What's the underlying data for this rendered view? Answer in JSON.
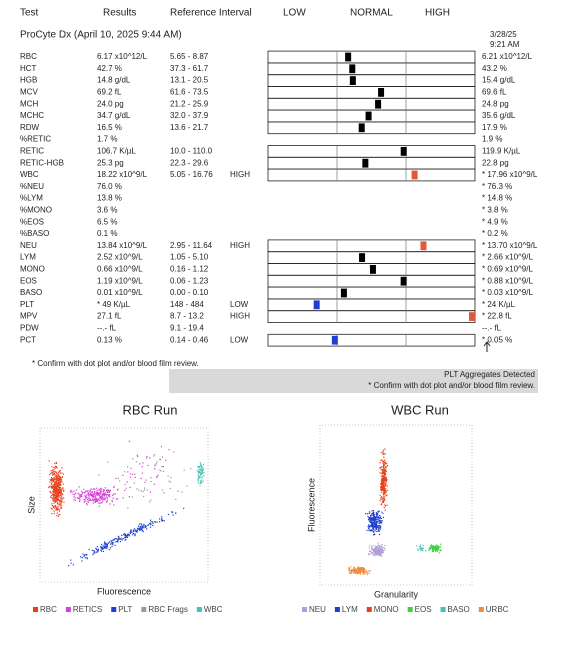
{
  "header": {
    "test": "Test",
    "results": "Results",
    "reference": "Reference Interval",
    "low": "LOW",
    "normal": "NORMAL",
    "high": "HIGH"
  },
  "run": {
    "title": "ProCyte Dx (April 10, 2025 9:44 AM)",
    "prior_date": "3/28/25",
    "prior_time": "9:21 AM"
  },
  "rows": [
    {
      "test": "RBC",
      "result": "6.17 x10^12/L",
      "reference": "5.65 - 8.87",
      "flag": "",
      "prior": "6.21 x10^12/L",
      "graph": true,
      "color": "#222",
      "prior_color": "#222"
    },
    {
      "test": "HCT",
      "result": "42.7 %",
      "reference": "37.3 - 61.7",
      "flag": "",
      "prior": "43.2 %",
      "graph": true,
      "color": "#222",
      "prior_color": "#222"
    },
    {
      "test": "HGB",
      "result": "14.8 g/dL",
      "reference": "13.1 - 20.5",
      "flag": "",
      "prior": "15.4 g/dL",
      "graph": true,
      "color": "#222",
      "prior_color": "#222"
    },
    {
      "test": "MCV",
      "result": "69.2 fL",
      "reference": "61.6 - 73.5",
      "flag": "",
      "prior": "69.6 fL",
      "graph": true,
      "color": "#222",
      "prior_color": "#222"
    },
    {
      "test": "MCH",
      "result": "24.0 pg",
      "reference": "21.2 - 25.9",
      "flag": "",
      "prior": "24.8 pg",
      "graph": true,
      "color": "#222",
      "prior_color": "#222"
    },
    {
      "test": "MCHC",
      "result": "34.7 g/dL",
      "reference": "32.0 - 37.9",
      "flag": "",
      "prior": "35.6 g/dL",
      "graph": true,
      "color": "#222",
      "prior_color": "#222"
    },
    {
      "test": "RDW",
      "result": "16.5 %",
      "reference": "13.6 - 21.7",
      "flag": "",
      "prior": "17.9 %",
      "graph": true,
      "color": "#222",
      "prior_color": "#222"
    },
    {
      "test": "%RETIC",
      "result": "1.7 %",
      "reference": "",
      "flag": "",
      "prior": "1.9 %",
      "graph": false,
      "color": "#222",
      "prior_color": "#222"
    },
    {
      "test": "RETIC",
      "result": "106.7 K/µL",
      "reference": "10.0 - 110.0",
      "flag": "",
      "prior": "119.9 K/µL",
      "graph": true,
      "color": "#222",
      "prior_color": "#c0392b"
    },
    {
      "test": "RETIC-HGB",
      "result": "25.3 pg",
      "reference": "22.3 - 29.6",
      "flag": "",
      "prior": "22.8 pg",
      "graph": true,
      "color": "#222",
      "prior_color": "#222"
    },
    {
      "test": "WBC",
      "result": "18.22 x10^9/L",
      "reference": "5.05 - 16.76",
      "flag": "HIGH",
      "prior": "* 17.96 x10^9/L",
      "graph": true,
      "color": "#c0392b",
      "prior_color": "#c0392b"
    },
    {
      "test": "%NEU",
      "result": "76.0 %",
      "reference": "",
      "flag": "",
      "prior": "* 76.3 %",
      "graph": false,
      "color": "#222",
      "prior_color": "#222"
    },
    {
      "test": "%LYM",
      "result": "13.8 %",
      "reference": "",
      "flag": "",
      "prior": "* 14.8 %",
      "graph": false,
      "color": "#222",
      "prior_color": "#222"
    },
    {
      "test": "%MONO",
      "result": "3.6 %",
      "reference": "",
      "flag": "",
      "prior": "* 3.8 %",
      "graph": false,
      "color": "#222",
      "prior_color": "#222"
    },
    {
      "test": "%EOS",
      "result": "6.5 %",
      "reference": "",
      "flag": "",
      "prior": "* 4.9 %",
      "graph": false,
      "color": "#222",
      "prior_color": "#222"
    },
    {
      "test": "%BASO",
      "result": "0.1 %",
      "reference": "",
      "flag": "",
      "prior": "* 0.2 %",
      "graph": false,
      "color": "#222",
      "prior_color": "#222"
    },
    {
      "test": "NEU",
      "result": "13.84 x10^9/L",
      "reference": "2.95 - 11.64",
      "flag": "HIGH",
      "prior": "* 13.70 x10^9/L",
      "graph": true,
      "color": "#c0392b",
      "prior_color": "#c0392b"
    },
    {
      "test": "LYM",
      "result": "2.52 x10^9/L",
      "reference": "1.05 - 5.10",
      "flag": "",
      "prior": "* 2.66 x10^9/L",
      "graph": true,
      "color": "#222",
      "prior_color": "#222"
    },
    {
      "test": "MONO",
      "result": "0.66 x10^9/L",
      "reference": "0.16 - 1.12",
      "flag": "",
      "prior": "* 0.69 x10^9/L",
      "graph": true,
      "color": "#222",
      "prior_color": "#222"
    },
    {
      "test": "EOS",
      "result": "1.19 x10^9/L",
      "reference": "0.06 - 1.23",
      "flag": "",
      "prior": "* 0.88 x10^9/L",
      "graph": true,
      "color": "#222",
      "prior_color": "#222"
    },
    {
      "test": "BASO",
      "result": "0.01 x10^9/L",
      "reference": "0.00 - 0.10",
      "flag": "",
      "prior": "* 0.03 x10^9/L",
      "graph": true,
      "color": "#222",
      "prior_color": "#222"
    },
    {
      "test": "PLT",
      "result": "* 49 K/µL",
      "reference": "148 - 484",
      "flag": "LOW",
      "prior": "* 24 K/µL",
      "graph": true,
      "color": "#2e86c1",
      "prior_color": "#2e86c1"
    },
    {
      "test": "MPV",
      "result": "27.1 fL",
      "reference": "8.7 - 13.2",
      "flag": "HIGH",
      "prior": "* 22.8 fL",
      "graph": true,
      "color": "#c0392b",
      "prior_color": "#c0392b"
    },
    {
      "test": "PDW",
      "result": "--.- fL",
      "reference": "9.1 - 19.4",
      "flag": "",
      "prior": "--.- fL",
      "graph": false,
      "color": "#222",
      "prior_color": "#222"
    },
    {
      "test": "PCT",
      "result": "0.13 %",
      "reference": "0.14 - 0.46",
      "flag": "LOW",
      "prior": "* 0.05 %",
      "graph": true,
      "color": "#2e86c1",
      "prior_color": "#2e86c1"
    }
  ],
  "notes": {
    "footnote": "* Confirm with dot plot and/or blood film review.",
    "alert": "PLT Aggregates Detected",
    "alert_detail": "* Confirm with dot plot and/or blood film review."
  },
  "plots": [
    {
      "title": "RBC Run",
      "x_label": "Fluorescence",
      "y_label": "Size",
      "legend": [
        {
          "name": "RBC",
          "color": "#e8401c"
        },
        {
          "name": "RETICS",
          "color": "#d63fd6"
        },
        {
          "name": "PLT",
          "color": "#1f3fd0"
        },
        {
          "name": "RBC Frags",
          "color": "#999999"
        },
        {
          "name": "WBC",
          "color": "#3fc4b4"
        }
      ]
    },
    {
      "title": "WBC Run",
      "x_label": "Granularity",
      "y_label": "Fluorescence",
      "legend": [
        {
          "name": "NEU",
          "color": "#b19cd9"
        },
        {
          "name": "LYM",
          "color": "#1f3fd0"
        },
        {
          "name": "MONO",
          "color": "#e8401c"
        },
        {
          "name": "EOS",
          "color": "#3fcf3f"
        },
        {
          "name": "BASO",
          "color": "#3fc4b4"
        },
        {
          "name": "URBC",
          "color": "#f08a3c"
        }
      ]
    }
  ]
}
